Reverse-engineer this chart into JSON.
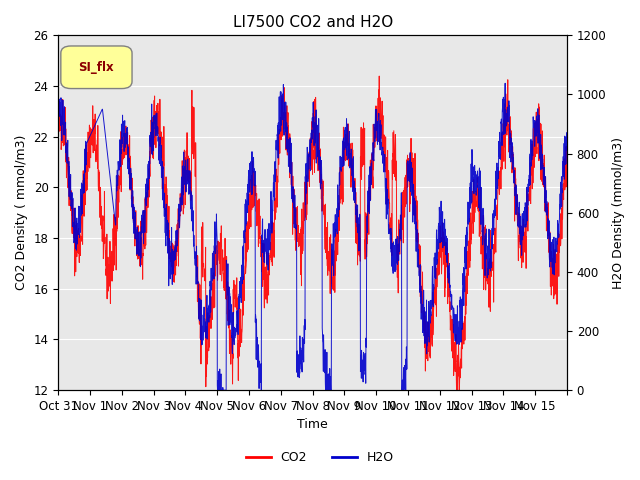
{
  "title": "LI7500 CO2 and H2O",
  "xlabel": "Time",
  "ylabel_left": "CO2 Density ( mmol/m3)",
  "ylabel_right": "H2O Density (mmol/m3)",
  "co2_ylim": [
    12,
    26
  ],
  "h2o_ylim": [
    0,
    1200
  ],
  "co2_yticks": [
    12,
    14,
    16,
    18,
    20,
    22,
    24,
    26
  ],
  "h2o_yticks": [
    0,
    200,
    400,
    600,
    800,
    1000,
    1200
  ],
  "xtick_positions": [
    0,
    1,
    2,
    3,
    4,
    5,
    6,
    7,
    8,
    9,
    10,
    11,
    12,
    13,
    14,
    15,
    16
  ],
  "xtick_labels": [
    "Oct 31",
    "Nov 1",
    "Nov 2",
    "Nov 3",
    "Nov 4",
    "Nov 5",
    "Nov 6",
    "Nov 7",
    "Nov 8",
    "Nov 9",
    "Nov 10",
    "Nov 11",
    "Nov 12",
    "Nov 13",
    "Nov 14",
    "Nov 15",
    ""
  ],
  "co2_color": "#ff0000",
  "h2o_color": "#0000cc",
  "background_color": "#e8e8e8",
  "plot_bg_color": "#ffffff",
  "legend_box_color": "#ffff99",
  "legend_box_text": "SI_flx",
  "title_fontsize": 11,
  "label_fontsize": 9,
  "tick_fontsize": 8.5
}
